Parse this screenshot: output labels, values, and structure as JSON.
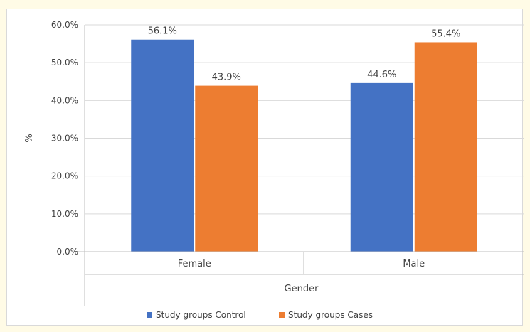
{
  "chart_data": {
    "type": "bar",
    "categories": [
      "Female",
      "Male"
    ],
    "series": [
      {
        "name": "Study groups Control",
        "values": [
          56.1,
          44.6
        ],
        "color": "#4472c4"
      },
      {
        "name": "Study groups Cases",
        "values": [
          43.9,
          55.4
        ],
        "color": "#ed7d31"
      }
    ],
    "data_labels": [
      [
        "56.1%",
        "44.6%"
      ],
      [
        "43.9%",
        "55.4%"
      ]
    ],
    "title": "",
    "xlabel": "Gender",
    "ylabel": "%",
    "ylim": [
      0,
      60
    ],
    "yticks": [
      "0.0%",
      "10.0%",
      "20.0%",
      "30.0%",
      "40.0%",
      "50.0%",
      "60.0%"
    ],
    "grid": true,
    "legend_position": "bottom"
  }
}
